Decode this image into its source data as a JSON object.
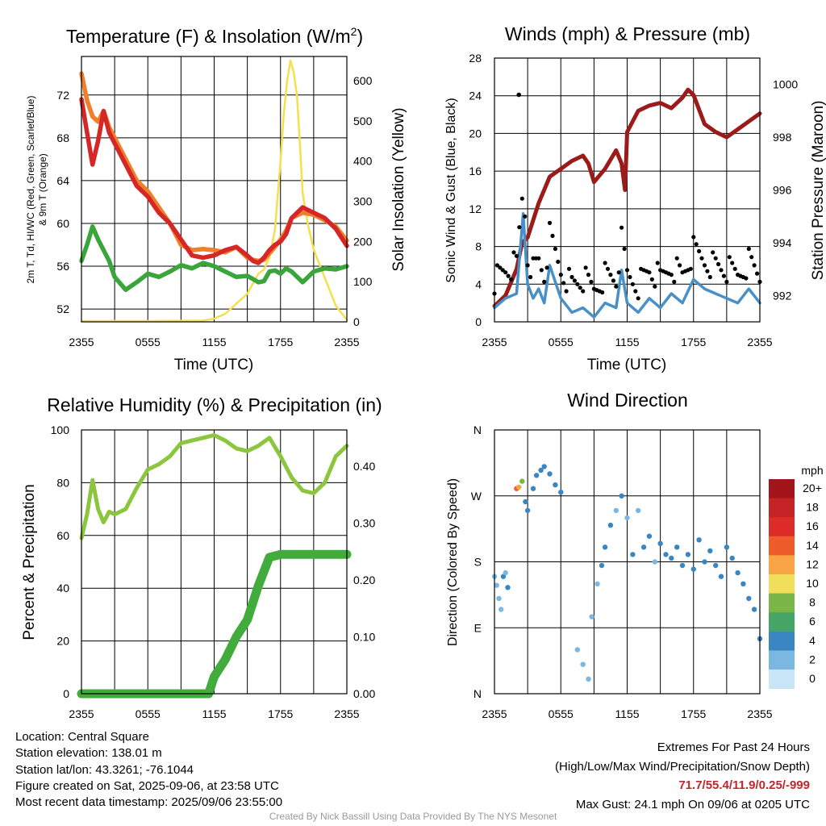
{
  "colors": {
    "temp": "#d62728",
    "dew": "#3aa53a",
    "heat": "#f17e28",
    "solar": "#f4e04d",
    "pressure": "#9b1b1b",
    "wind": "#4a90c8",
    "gust": "#000000",
    "rh": "#8cc63f",
    "precip": "#41ab3c",
    "extremes": "#c0272d"
  },
  "chart_data": [
    {
      "type": "line",
      "title": "Temperature (F) & Insolation (W/m²)",
      "xlabel": "Time (UTC)",
      "xticks": [
        "2355",
        "0555",
        "1155",
        "1755",
        "2355"
      ],
      "ylabel": "2m T, Td, HI/WC (Red, Green, Scarlet/Blue)",
      "ylabel2": "& 9m T (Orange)",
      "ylim": [
        50.8,
        75.6
      ],
      "yticks": [
        52,
        56,
        60,
        64,
        68,
        72
      ],
      "y2label": "Solar Insolation (Yellow)",
      "y2lim": [
        0,
        660
      ],
      "y2ticks": [
        0,
        100,
        200,
        300,
        400,
        500,
        600
      ],
      "x_hours": [
        0,
        0.5,
        1,
        1.5,
        2,
        2.5,
        3,
        4,
        5,
        6,
        7,
        8,
        9,
        10,
        11,
        12,
        13,
        14,
        15,
        15.5,
        16,
        16.5,
        17,
        17.5,
        18,
        18.5,
        19,
        20,
        21,
        22,
        23,
        24
      ],
      "series": [
        {
          "name": "2m T",
          "color": "#d62728",
          "values": [
            71.6,
            68.5,
            65.5,
            67.7,
            70.5,
            68.5,
            67.5,
            65.5,
            63.5,
            62.5,
            61.0,
            60.0,
            58.5,
            57.0,
            56.8,
            57.0,
            57.5,
            57.8,
            57.0,
            56.5,
            56.3,
            56.8,
            57.5,
            58.0,
            58.3,
            59.0,
            60.5,
            61.5,
            61.0,
            60.5,
            59.5,
            57.9
          ]
        },
        {
          "name": "9m T",
          "color": "#f17e28",
          "values": [
            74.0,
            71.5,
            70.0,
            69.5,
            70.5,
            69.0,
            68.0,
            66.0,
            64.0,
            63.0,
            61.5,
            60.0,
            58.0,
            57.5,
            57.6,
            57.5,
            57.3,
            57.8,
            56.8,
            56.6,
            56.5,
            56.6,
            57.2,
            57.8,
            58.5,
            59.3,
            60.5,
            61.0,
            60.8,
            60.3,
            59.7,
            58.4
          ]
        },
        {
          "name": "Td",
          "color": "#3aa53a",
          "values": [
            56.5,
            58.0,
            59.7,
            58.5,
            57.5,
            56.5,
            55.0,
            53.8,
            54.5,
            55.3,
            55.0,
            55.5,
            56.1,
            55.8,
            56.3,
            56.0,
            55.5,
            55.0,
            55.1,
            54.8,
            54.5,
            54.6,
            55.5,
            55.6,
            55.3,
            55.8,
            55.5,
            54.5,
            55.5,
            55.8,
            55.7,
            56.0
          ]
        }
      ],
      "solar_x_hours": [
        0,
        6,
        11,
        12,
        13,
        14,
        15,
        16,
        16.5,
        17,
        17.5,
        18,
        18.3,
        18.6,
        18.9,
        19.2,
        19.5,
        19.8,
        20,
        20.5,
        21,
        22,
        23,
        24
      ],
      "solar_values": [
        2,
        2,
        3,
        8,
        20,
        45,
        70,
        120,
        130,
        160,
        230,
        400,
        520,
        600,
        650,
        620,
        560,
        420,
        320,
        240,
        180,
        110,
        40,
        5
      ]
    },
    {
      "type": "line",
      "title": "Winds (mph) & Pressure (mb)",
      "xlabel": "Time (UTC)",
      "xticks": [
        "2355",
        "0555",
        "1155",
        "1755",
        "2355"
      ],
      "ylabel": "Sonic Wind & Gust (Blue, Black)",
      "ylim": [
        0,
        28
      ],
      "yticks": [
        0,
        4,
        8,
        12,
        16,
        20,
        24,
        28
      ],
      "y2label": "Station Pressure (Maroon)",
      "y2lim": [
        991.0,
        1001.0
      ],
      "y2ticks": [
        992,
        994,
        996,
        998,
        1000
      ],
      "series": [
        {
          "name": "Station Pressure",
          "color": "#9b1b1b",
          "x_hours": [
            0,
            1,
            2,
            2.5,
            3,
            4,
            5,
            6,
            7,
            8,
            8.5,
            9,
            10,
            11,
            11.5,
            11.8,
            12,
            13,
            14,
            15,
            16,
            17,
            17.5,
            18,
            19,
            20,
            21,
            22,
            23,
            24
          ],
          "values": [
            991.6,
            992.0,
            993.0,
            994.0,
            994.2,
            995.5,
            996.5,
            996.8,
            997.1,
            997.3,
            997.0,
            996.3,
            996.8,
            997.5,
            997.0,
            996.0,
            998.2,
            999.0,
            999.2,
            999.3,
            999.1,
            999.5,
            999.8,
            999.6,
            998.5,
            998.2,
            998.0,
            998.3,
            998.6,
            998.9
          ]
        },
        {
          "name": "Sonic Wind",
          "color": "#4a90c8",
          "x_hours": [
            0,
            1,
            2,
            2.6,
            3,
            3.5,
            4,
            4.5,
            5,
            6,
            7,
            8,
            9,
            10,
            11,
            11.5,
            12,
            13,
            14,
            15,
            16,
            17,
            18,
            19,
            20,
            21,
            22,
            23,
            24
          ],
          "values": [
            1.5,
            2.5,
            3.0,
            11.5,
            4.0,
            2.5,
            3.5,
            2.0,
            6.0,
            2.5,
            1.0,
            1.5,
            0.5,
            2.0,
            1.5,
            5.5,
            2.0,
            1.0,
            2.5,
            1.5,
            3.0,
            2.0,
            4.5,
            3.5,
            3.0,
            2.5,
            2.0,
            3.5,
            2.0
          ]
        }
      ],
      "gust_max": {
        "x_hours": 2.2,
        "value": 24.1
      }
    },
    {
      "type": "line",
      "title": "Relative Humidity (%) & Precipitation (in)",
      "xticks": [
        "2355",
        "0555",
        "1155",
        "1755",
        "2355"
      ],
      "ylabel": "Percent & Precipitation",
      "ylim": [
        0,
        100
      ],
      "yticks": [
        0,
        20,
        40,
        60,
        80,
        100
      ],
      "y2lim": [
        0,
        0.464
      ],
      "y2ticks": [
        "0.00",
        "0.10",
        "0.20",
        "0.30",
        "0.40"
      ],
      "series": [
        {
          "name": "Relative Humidity",
          "color": "#8cc63f",
          "x_hours": [
            0,
            0.5,
            1,
            1.5,
            2,
            2.5,
            3,
            4,
            5,
            6,
            7,
            8,
            9,
            10,
            11,
            12,
            13,
            14,
            15,
            16,
            17,
            18,
            19,
            20,
            21,
            22,
            23,
            24
          ],
          "values": [
            59,
            68,
            81,
            70,
            65,
            69,
            68,
            70,
            78,
            85,
            87,
            90,
            95,
            96,
            97,
            98,
            96,
            93,
            92,
            94,
            97,
            90,
            82,
            77,
            76,
            80,
            90,
            94
          ]
        },
        {
          "name": "Precipitation",
          "color": "#41ab3c",
          "x_hours": [
            0,
            11.5,
            12,
            13,
            14,
            15,
            16,
            17,
            18,
            24
          ],
          "values": [
            0.0,
            0.0,
            0.03,
            0.06,
            0.1,
            0.13,
            0.19,
            0.24,
            0.245,
            0.245
          ]
        }
      ]
    },
    {
      "type": "scatter",
      "title": "Wind Direction",
      "xticks": [
        "2355",
        "0555",
        "1155",
        "1755",
        "2355"
      ],
      "ylabel": "Direction (Colored By Speed)",
      "yticks": [
        "N",
        "E",
        "S",
        "W",
        "N"
      ],
      "ylim": [
        0,
        360
      ],
      "colorbar": {
        "unit": "mph",
        "labels": [
          "20+",
          "18",
          "16",
          "14",
          "12",
          "10",
          "8",
          "6",
          "4",
          "2",
          "0"
        ],
        "colors": [
          "#a3151b",
          "#c52326",
          "#de2c28",
          "#ef5c2b",
          "#f9a545",
          "#f1de5a",
          "#7ab648",
          "#47a567",
          "#3a86c3",
          "#7ab8e2",
          "#c8e6f7"
        ]
      },
      "points": [
        [
          0.0,
          160,
          2
        ],
        [
          0.2,
          148,
          2
        ],
        [
          0.4,
          130,
          1
        ],
        [
          0.6,
          115,
          1
        ],
        [
          0.8,
          160,
          3
        ],
        [
          1.0,
          165,
          2
        ],
        [
          1.2,
          145,
          3
        ],
        [
          2.0,
          280,
          13
        ],
        [
          2.2,
          282,
          11
        ],
        [
          2.5,
          290,
          7
        ],
        [
          2.8,
          262,
          3
        ],
        [
          3.0,
          250,
          3
        ],
        [
          3.5,
          280,
          3
        ],
        [
          3.8,
          298,
          4
        ],
        [
          4.2,
          305,
          3
        ],
        [
          4.5,
          310,
          3
        ],
        [
          5.0,
          300,
          4
        ],
        [
          5.5,
          285,
          3
        ],
        [
          6.0,
          275,
          3
        ],
        [
          7.5,
          60,
          1
        ],
        [
          8.0,
          40,
          1
        ],
        [
          8.5,
          20,
          1
        ],
        [
          8.8,
          105,
          2
        ],
        [
          9.3,
          150,
          2
        ],
        [
          9.7,
          175,
          3
        ],
        [
          10.0,
          200,
          3
        ],
        [
          10.5,
          230,
          3
        ],
        [
          11.0,
          250,
          2
        ],
        [
          11.5,
          270,
          3
        ],
        [
          12.0,
          240,
          2
        ],
        [
          12.5,
          190,
          3
        ],
        [
          13.0,
          250,
          2
        ],
        [
          13.5,
          200,
          3
        ],
        [
          14.0,
          215,
          3
        ],
        [
          14.5,
          180,
          2
        ],
        [
          15.0,
          205,
          3
        ],
        [
          15.5,
          190,
          3
        ],
        [
          16.0,
          185,
          3
        ],
        [
          16.5,
          200,
          3
        ],
        [
          17.0,
          175,
          3
        ],
        [
          17.5,
          190,
          3
        ],
        [
          18.0,
          170,
          3
        ],
        [
          18.5,
          210,
          3
        ],
        [
          19.0,
          180,
          3
        ],
        [
          19.5,
          195,
          3
        ],
        [
          20.0,
          175,
          3
        ],
        [
          20.5,
          160,
          3
        ],
        [
          21.0,
          200,
          3
        ],
        [
          21.5,
          185,
          3
        ],
        [
          22.0,
          165,
          3
        ],
        [
          22.5,
          150,
          3
        ],
        [
          23.0,
          130,
          3
        ],
        [
          23.5,
          115,
          3
        ],
        [
          24.0,
          75,
          3
        ]
      ]
    }
  ],
  "footer": {
    "location": "Location: Central Square",
    "elevation": "Station elevation: 138.01 m",
    "latlon": "Station lat/lon: 43.3261; -76.1044",
    "created": "Figure created on Sat, 2025-09-06, at 23:58 UTC",
    "recent": "Most recent data timestamp: 2025/09/06 23:55:00",
    "extremes_title": "Extremes For Past 24 Hours",
    "extremes_sub": "(High/Low/Max Wind/Precipitation/Snow Depth)",
    "extremes_values": "71.7/55.4/11.9/0.25/-999",
    "max_gust": "Max Gust: 24.1 mph On 09/06 at 0205 UTC",
    "credit": "Created By Nick Bassill Using Data Provided By The NYS Mesonet"
  }
}
